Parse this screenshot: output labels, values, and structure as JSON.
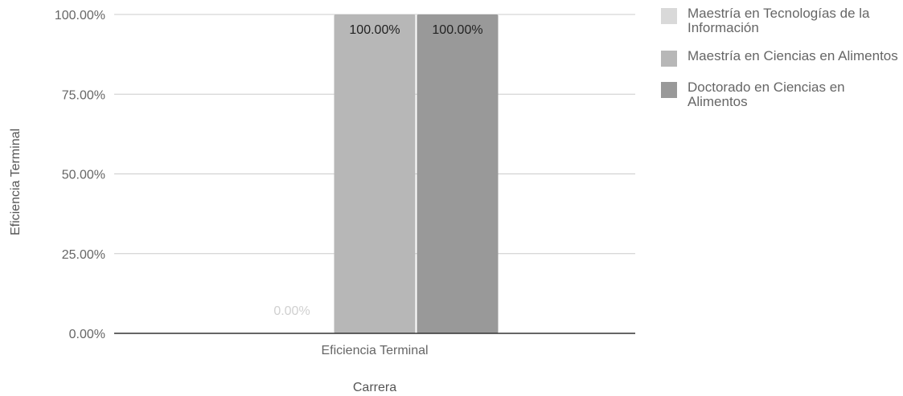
{
  "chart_data": {
    "type": "bar",
    "title": "",
    "xlabel": "Carrera",
    "ylabel": "Eficiencia Terminal",
    "categories": [
      "Eficiencia Terminal"
    ],
    "ylim": [
      0,
      100
    ],
    "yticks": [
      "0.00%",
      "25.00%",
      "50.00%",
      "75.00%",
      "100.00%"
    ],
    "ytick_values": [
      0,
      25,
      50,
      75,
      100
    ],
    "grid": true,
    "legend_position": "right",
    "series": [
      {
        "name": "Maestría en Tecnologías de la Información",
        "values": [
          0
        ],
        "labels": [
          "0.00%"
        ],
        "color": "#d9d9d9",
        "label_color": "#d0d0d0"
      },
      {
        "name": "Maestría en Ciencias en Alimentos",
        "values": [
          100
        ],
        "labels": [
          "100.00%"
        ],
        "color": "#b7b7b7",
        "label_color": "#222222"
      },
      {
        "name": "Doctorado en Ciencias en Alimentos",
        "values": [
          100
        ],
        "labels": [
          "100.00%"
        ],
        "color": "#999999",
        "label_color": "#222222"
      }
    ]
  }
}
